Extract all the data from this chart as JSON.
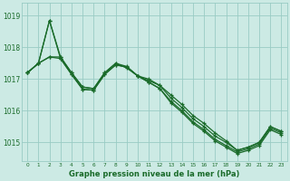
{
  "background_color": "#cceae4",
  "grid_color": "#99ccc4",
  "line_color": "#1a6b2a",
  "title": "Graphe pression niveau de la mer (hPa)",
  "ylim": [
    1014.4,
    1019.4
  ],
  "xlim": [
    -0.5,
    23.5
  ],
  "yticks": [
    1015,
    1016,
    1017,
    1018,
    1019
  ],
  "xticks": [
    0,
    1,
    2,
    3,
    4,
    5,
    6,
    7,
    8,
    9,
    10,
    11,
    12,
    13,
    14,
    15,
    16,
    17,
    18,
    19,
    20,
    21,
    22,
    23
  ],
  "series": [
    [
      1017.2,
      1017.5,
      1018.85,
      1017.7,
      1017.2,
      1016.75,
      1016.7,
      1017.2,
      1017.5,
      1017.4,
      1017.1,
      1017.0,
      1016.8,
      1016.5,
      1016.2,
      1015.85,
      1015.6,
      1015.3,
      1015.05,
      1014.75,
      1014.85,
      1015.0,
      1015.5,
      1015.35
    ],
    [
      1017.2,
      1017.5,
      1017.7,
      1017.7,
      1017.2,
      1016.75,
      1016.7,
      1017.2,
      1017.5,
      1017.35,
      1017.1,
      1016.95,
      1016.8,
      1016.4,
      1016.1,
      1015.75,
      1015.5,
      1015.2,
      1015.0,
      1014.75,
      1014.85,
      1015.0,
      1015.5,
      1015.35
    ],
    [
      1017.2,
      1017.5,
      1018.85,
      1017.65,
      1017.15,
      1016.68,
      1016.65,
      1017.15,
      1017.45,
      1017.38,
      1017.1,
      1016.9,
      1016.7,
      1016.3,
      1016.0,
      1015.65,
      1015.4,
      1015.1,
      1014.9,
      1014.7,
      1014.8,
      1014.95,
      1015.45,
      1015.3
    ],
    [
      1017.2,
      1017.5,
      1017.7,
      1017.65,
      1017.15,
      1016.68,
      1016.65,
      1017.15,
      1017.45,
      1017.38,
      1017.1,
      1016.9,
      1016.7,
      1016.25,
      1015.95,
      1015.6,
      1015.35,
      1015.05,
      1014.85,
      1014.65,
      1014.75,
      1014.9,
      1015.4,
      1015.25
    ]
  ],
  "figsize": [
    3.2,
    2.0
  ],
  "dpi": 100,
  "title_fontsize": 6.0,
  "xtick_fontsize": 4.2,
  "ytick_fontsize": 5.5,
  "linewidth": 0.9,
  "markersize": 2.5,
  "marker": "+"
}
